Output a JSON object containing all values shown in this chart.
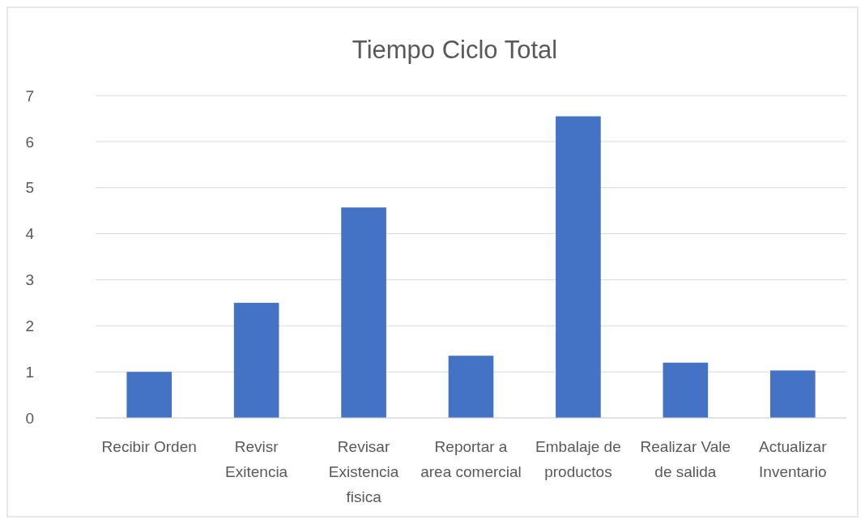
{
  "chart_data": {
    "type": "bar",
    "title": "Tiempo Ciclo Total",
    "categories": [
      "Recibir Orden",
      "Revisr Exitencia",
      "Revisar Existencia fisica",
      "Reportar a area comercial",
      "Embalaje de productos",
      "Realizar Vale de salida",
      "Actualizar Inventario"
    ],
    "values": [
      1.0,
      2.5,
      4.57,
      1.35,
      6.55,
      1.2,
      1.03
    ],
    "color": "#4472c4",
    "ylim": [
      0,
      7
    ],
    "yticks": [
      0,
      1,
      2,
      3,
      4,
      5,
      6,
      7
    ],
    "grid": "y"
  }
}
